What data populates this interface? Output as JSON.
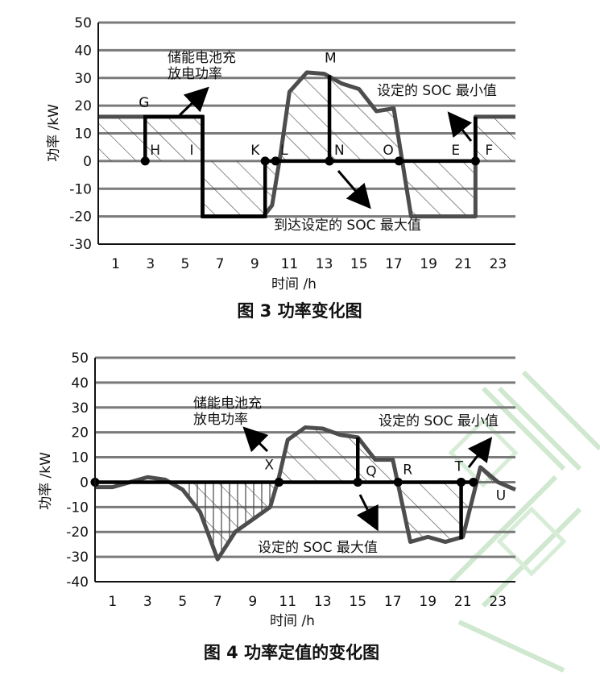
{
  "chart_data": [
    {
      "type": "line",
      "title": "",
      "caption": "图 3    功率变化图",
      "xlabel": "时间 /h",
      "ylabel": "功率 /kW",
      "xlim": [
        0,
        24
      ],
      "ylim": [
        -30,
        50
      ],
      "xticks": [
        1,
        3,
        5,
        7,
        9,
        11,
        13,
        15,
        17,
        19,
        21,
        23
      ],
      "yticks": [
        50,
        40,
        30,
        20,
        10,
        0,
        -10,
        -20,
        -30
      ],
      "grid": "horizontal",
      "series": [
        {
          "name": "",
          "x": [
            0,
            6,
            6,
            9.5,
            10,
            10.5,
            11,
            12,
            13,
            14,
            15,
            16,
            17,
            18,
            19,
            20,
            21.7,
            21.7,
            24
          ],
          "y": [
            16,
            16,
            -20,
            -20,
            -16,
            3,
            25,
            32,
            31.5,
            28,
            26,
            18,
            19,
            -20,
            -20,
            -20,
            -20,
            16,
            16
          ]
        },
        {
          "name": "",
          "x": [
            2.7,
            2.7,
            6,
            6,
            9.6,
            9.6,
            10.2,
            13.3,
            13.3,
            13.3,
            17.3,
            21.7,
            21.7
          ],
          "y": [
            0,
            16,
            16,
            -20,
            -20,
            0,
            0,
            0,
            31,
            0,
            0,
            0,
            16
          ]
        }
      ],
      "points": [
        {
          "label": "G",
          "x": 2.7,
          "y": 16
        },
        {
          "label": "H",
          "x": 2.7,
          "y": 0
        },
        {
          "label": "I",
          "x": 6,
          "y": 0
        },
        {
          "label": "K",
          "x": 9.6,
          "y": 0
        },
        {
          "label": "L",
          "x": 10.2,
          "y": 0
        },
        {
          "label": "M",
          "x": 13.3,
          "y": 31
        },
        {
          "label": "N",
          "x": 13.3,
          "y": 0
        },
        {
          "label": "O",
          "x": 17.3,
          "y": 0
        },
        {
          "label": "E",
          "x": 21.7,
          "y": 0
        },
        {
          "label": "F",
          "x": 21.7,
          "y": 0
        }
      ],
      "annotations": {
        "storage_power_line1": "储能电池充",
        "storage_power_line2": "放电功率",
        "soc_min": "设定的 SOC 最小值",
        "soc_max": "到达设定的 SOC 最大值"
      }
    },
    {
      "type": "line",
      "title": "",
      "caption": "图 4    功率定值的变化图",
      "xlabel": "时间 /h",
      "ylabel": "功率 /kW",
      "xlim": [
        0,
        24
      ],
      "ylim": [
        -40,
        50
      ],
      "xticks": [
        1,
        3,
        5,
        7,
        9,
        11,
        13,
        15,
        17,
        19,
        21,
        23
      ],
      "yticks": [
        50,
        40,
        30,
        20,
        10,
        0,
        -10,
        -20,
        -30,
        -40
      ],
      "grid": "horizontal",
      "series": [
        {
          "name": "",
          "x": [
            0,
            1,
            2,
            3,
            4,
            5,
            6,
            7,
            8,
            9,
            10,
            10.5,
            11,
            12,
            13,
            14,
            15,
            16,
            17,
            18,
            19,
            20,
            21,
            22,
            23,
            24
          ],
          "y": [
            -2,
            -2,
            0,
            2,
            1,
            -3,
            -12,
            -31,
            -20,
            -15,
            -10,
            2,
            17,
            22,
            21.5,
            19,
            18,
            9,
            9,
            -24,
            -22,
            -24,
            -22,
            6,
            0,
            -3
          ]
        },
        {
          "name": "",
          "x": [
            0,
            10.5,
            10.5,
            15,
            15,
            15,
            17.3,
            20.9,
            20.9,
            20.9,
            21.6
          ],
          "y": [
            0,
            0,
            0,
            0,
            18,
            0,
            0,
            0,
            -23,
            0,
            0
          ]
        }
      ],
      "points": [
        {
          "label": "X",
          "x": 10.5,
          "y": 0
        },
        {
          "label": "Q",
          "x": 15,
          "y": 0
        },
        {
          "label": "R",
          "x": 17.3,
          "y": 0
        },
        {
          "label": "T",
          "x": 20.9,
          "y": 0
        },
        {
          "label": "U",
          "x": 21.6,
          "y": 0
        }
      ],
      "annotations": {
        "storage_power_line1": "储能电池充",
        "storage_power_line2": "放电功率",
        "soc_min": "设定的 SOC 最小值",
        "soc_max": "设定的 SOC 最大值"
      }
    }
  ]
}
